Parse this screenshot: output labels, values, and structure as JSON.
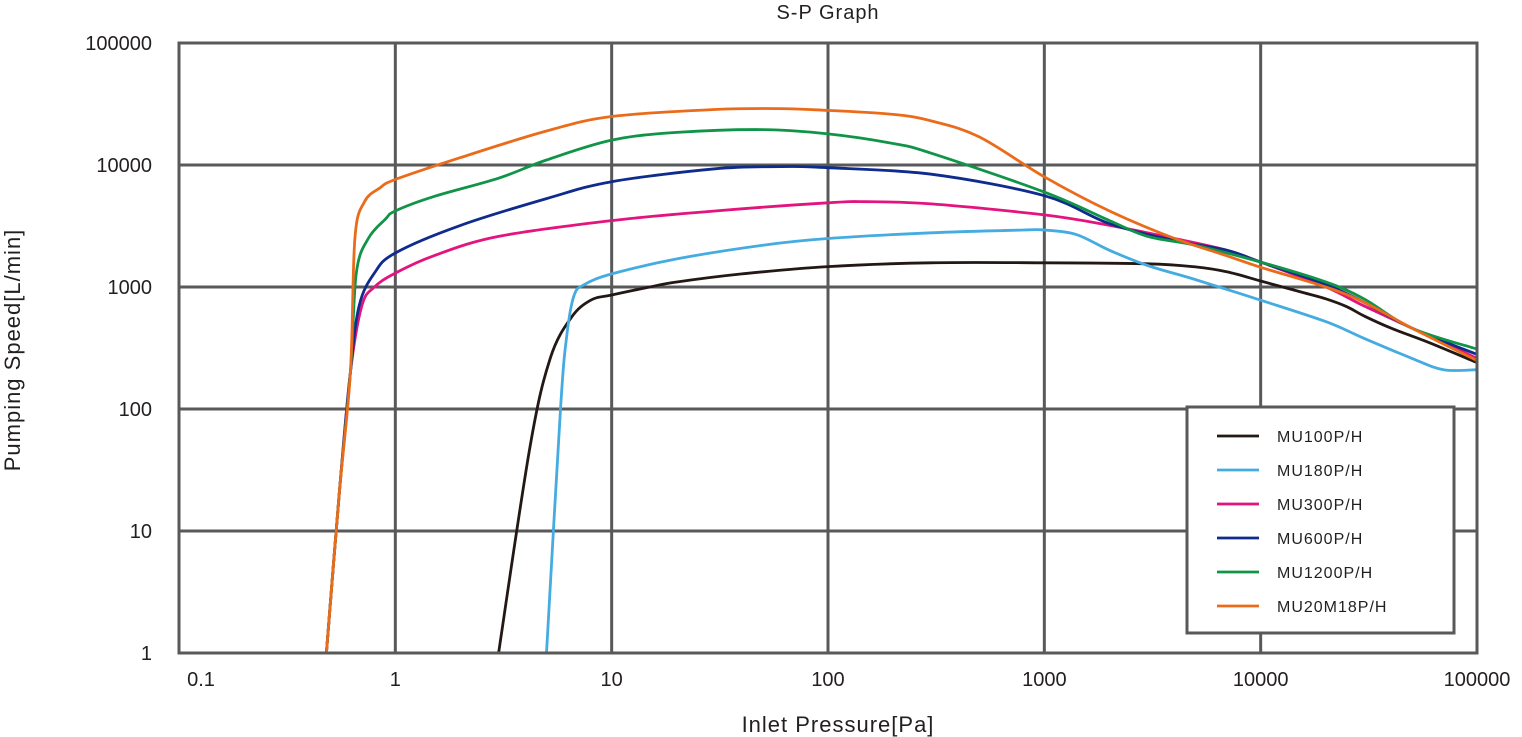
{
  "chart_data": {
    "type": "line",
    "title": "S-P Graph",
    "xlabel": "Inlet Pressure[Pa]",
    "ylabel": "Pumping Speed[L/min]",
    "xscale": "log",
    "yscale": "log",
    "xlim": [
      0.1,
      100000
    ],
    "ylim": [
      1,
      100000
    ],
    "x_ticks": [
      "0.1",
      "1",
      "10",
      "100",
      "1000",
      "10000",
      "100000"
    ],
    "y_ticks": [
      "1",
      "10",
      "100",
      "1000",
      "10000",
      "100000"
    ],
    "grid": true,
    "legend_position": "bottom-right",
    "series": [
      {
        "name": "MU100P/H",
        "color": "#231815",
        "points": [
          [
            3,
            1
          ],
          [
            4.2,
            50
          ],
          [
            5.2,
            260
          ],
          [
            6.5,
            560
          ],
          [
            8,
            780
          ],
          [
            10,
            860
          ],
          [
            15,
            1000
          ],
          [
            20,
            1100
          ],
          [
            40,
            1280
          ],
          [
            100,
            1470
          ],
          [
            300,
            1580
          ],
          [
            1000,
            1580
          ],
          [
            3000,
            1550
          ],
          [
            5000,
            1460
          ],
          [
            7000,
            1330
          ],
          [
            10000,
            1120
          ],
          [
            15000,
            920
          ],
          [
            20000,
            800
          ],
          [
            25000,
            690
          ],
          [
            30000,
            580
          ],
          [
            40000,
            460
          ],
          [
            60000,
            350
          ],
          [
            100000,
            240
          ]
        ]
      },
      {
        "name": "MU180P/H",
        "color": "#44ace0",
        "points": [
          [
            5,
            1
          ],
          [
            5.8,
            100
          ],
          [
            6.2,
            400
          ],
          [
            6.7,
            850
          ],
          [
            7.5,
            1050
          ],
          [
            10,
            1280
          ],
          [
            20,
            1700
          ],
          [
            50,
            2200
          ],
          [
            100,
            2500
          ],
          [
            300,
            2780
          ],
          [
            800,
            2930
          ],
          [
            1000,
            2930
          ],
          [
            1400,
            2700
          ],
          [
            2000,
            2000
          ],
          [
            3000,
            1500
          ],
          [
            5000,
            1150
          ],
          [
            10000,
            780
          ],
          [
            20000,
            520
          ],
          [
            30000,
            380
          ],
          [
            50000,
            260
          ],
          [
            70000,
            210
          ],
          [
            100000,
            210
          ]
        ]
      },
      {
        "name": "MU300P/H",
        "color": "#e3147d",
        "points": [
          [
            0.48,
            1
          ],
          [
            0.55,
            20
          ],
          [
            0.62,
            200
          ],
          [
            0.7,
            700
          ],
          [
            0.8,
            1000
          ],
          [
            1,
            1300
          ],
          [
            1.5,
            1800
          ],
          [
            3,
            2600
          ],
          [
            10,
            3500
          ],
          [
            30,
            4200
          ],
          [
            100,
            4900
          ],
          [
            150,
            5000
          ],
          [
            300,
            4800
          ],
          [
            1000,
            3900
          ],
          [
            2000,
            3200
          ],
          [
            4000,
            2500
          ],
          [
            7000,
            2000
          ],
          [
            10000,
            1600
          ],
          [
            20000,
            1000
          ],
          [
            30000,
            700
          ],
          [
            50000,
            460
          ],
          [
            70000,
            350
          ],
          [
            100000,
            260
          ]
        ]
      },
      {
        "name": "MU600P/H",
        "color": "#0f2b8c",
        "points": [
          [
            0.48,
            1
          ],
          [
            0.55,
            20
          ],
          [
            0.62,
            200
          ],
          [
            0.68,
            700
          ],
          [
            0.8,
            1300
          ],
          [
            1,
            1900
          ],
          [
            2,
            3200
          ],
          [
            5,
            5300
          ],
          [
            10,
            7300
          ],
          [
            30,
            9300
          ],
          [
            60,
            9700
          ],
          [
            100,
            9500
          ],
          [
            300,
            8400
          ],
          [
            1000,
            5600
          ],
          [
            2000,
            3300
          ],
          [
            4000,
            2400
          ],
          [
            7000,
            2000
          ],
          [
            10000,
            1600
          ],
          [
            20000,
            1050
          ],
          [
            30000,
            750
          ],
          [
            50000,
            460
          ],
          [
            100000,
            280
          ]
        ]
      },
      {
        "name": "MU1200P/H",
        "color": "#109447",
        "points": [
          [
            0.48,
            1
          ],
          [
            0.55,
            20
          ],
          [
            0.62,
            200
          ],
          [
            0.66,
            1300
          ],
          [
            0.75,
            2500
          ],
          [
            0.9,
            3600
          ],
          [
            1,
            4200
          ],
          [
            1.5,
            5500
          ],
          [
            3,
            7800
          ],
          [
            5,
            11000
          ],
          [
            10,
            16000
          ],
          [
            20,
            18500
          ],
          [
            50,
            19500
          ],
          [
            100,
            18000
          ],
          [
            200,
            15000
          ],
          [
            300,
            12500
          ],
          [
            1000,
            6000
          ],
          [
            2000,
            3500
          ],
          [
            3000,
            2600
          ],
          [
            5000,
            2200
          ],
          [
            10000,
            1600
          ],
          [
            20000,
            1100
          ],
          [
            30000,
            800
          ],
          [
            50000,
            460
          ],
          [
            100000,
            310
          ]
        ]
      },
      {
        "name": "MU20M18P/H",
        "color": "#ea6c1a",
        "points": [
          [
            0.48,
            1
          ],
          [
            0.55,
            20
          ],
          [
            0.62,
            200
          ],
          [
            0.65,
            2500
          ],
          [
            0.72,
            5000
          ],
          [
            0.85,
            6500
          ],
          [
            1,
            7600
          ],
          [
            2,
            11500
          ],
          [
            5,
            19000
          ],
          [
            10,
            25000
          ],
          [
            30,
            28500
          ],
          [
            60,
            29000
          ],
          [
            100,
            28000
          ],
          [
            200,
            26000
          ],
          [
            300,
            23000
          ],
          [
            500,
            17000
          ],
          [
            1000,
            8000
          ],
          [
            2000,
            4200
          ],
          [
            4000,
            2500
          ],
          [
            7000,
            1800
          ],
          [
            10000,
            1450
          ],
          [
            20000,
            1000
          ],
          [
            30000,
            750
          ],
          [
            50000,
            460
          ],
          [
            100000,
            250
          ]
        ]
      }
    ]
  }
}
